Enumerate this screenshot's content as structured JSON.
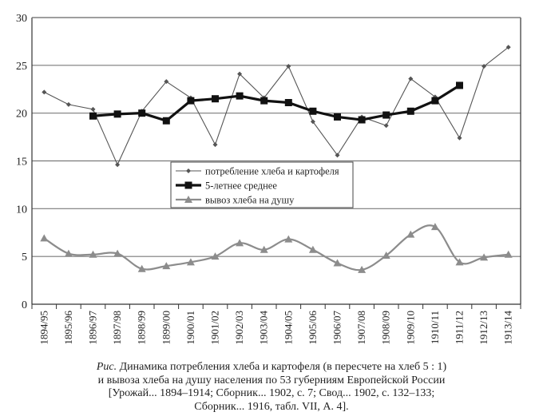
{
  "chart_data": {
    "type": "line",
    "title": "",
    "xlabel": "",
    "ylabel": "",
    "ylim": [
      0,
      30
    ],
    "yticks": [
      0,
      5,
      10,
      15,
      20,
      25,
      30
    ],
    "grid": "horizontal",
    "legend_position": "center-left",
    "categories": [
      "1894/95",
      "1895/96",
      "1896/97",
      "1897/98",
      "1898/99",
      "1899/00",
      "1900/01",
      "1901/02",
      "1902/03",
      "1903/04",
      "1904/05",
      "1905/06",
      "1906/07",
      "1907/08",
      "1908/09",
      "1909/10",
      "1910/11",
      "1911/12",
      "1912/13",
      "1913/14"
    ],
    "series": [
      {
        "name": "потребление хлеба и картофеля",
        "marker": "diamond",
        "color": "#555555",
        "values": [
          22.2,
          20.9,
          20.4,
          14.6,
          20.2,
          23.3,
          21.6,
          16.7,
          24.1,
          21.6,
          24.9,
          19.1,
          15.6,
          19.6,
          18.7,
          23.6,
          21.7,
          17.4,
          24.9,
          26.9
        ]
      },
      {
        "name": "5-летнее среднее",
        "marker": "square",
        "color": "#111111",
        "values": [
          null,
          null,
          19.7,
          19.9,
          20.0,
          19.2,
          21.3,
          21.5,
          21.8,
          21.3,
          21.1,
          20.2,
          19.6,
          19.3,
          19.8,
          20.2,
          21.3,
          22.9,
          null,
          null
        ]
      },
      {
        "name": "вывоз хлеба на душу",
        "marker": "triangle",
        "color": "#8c8c8c",
        "values": [
          6.9,
          5.3,
          5.2,
          5.3,
          3.7,
          4.0,
          4.4,
          5.0,
          6.4,
          5.7,
          6.8,
          5.7,
          4.3,
          3.6,
          5.1,
          7.3,
          8.1,
          4.4,
          4.9,
          5.2
        ]
      }
    ]
  },
  "caption": {
    "lead": "Рис.",
    "line1": " Динамика потребления хлеба и картофеля (в пересчете на хлеб 5 : 1)",
    "line2": "и вывоза хлеба на душу населения по 53 губерниям Европейской России",
    "line3": "[Урожай... 1894–1914; Сборник... 1902, с. 7; Свод... 1902, с. 132–133;",
    "line4": "Сборник... 1916, табл. VII, А. 4]."
  }
}
